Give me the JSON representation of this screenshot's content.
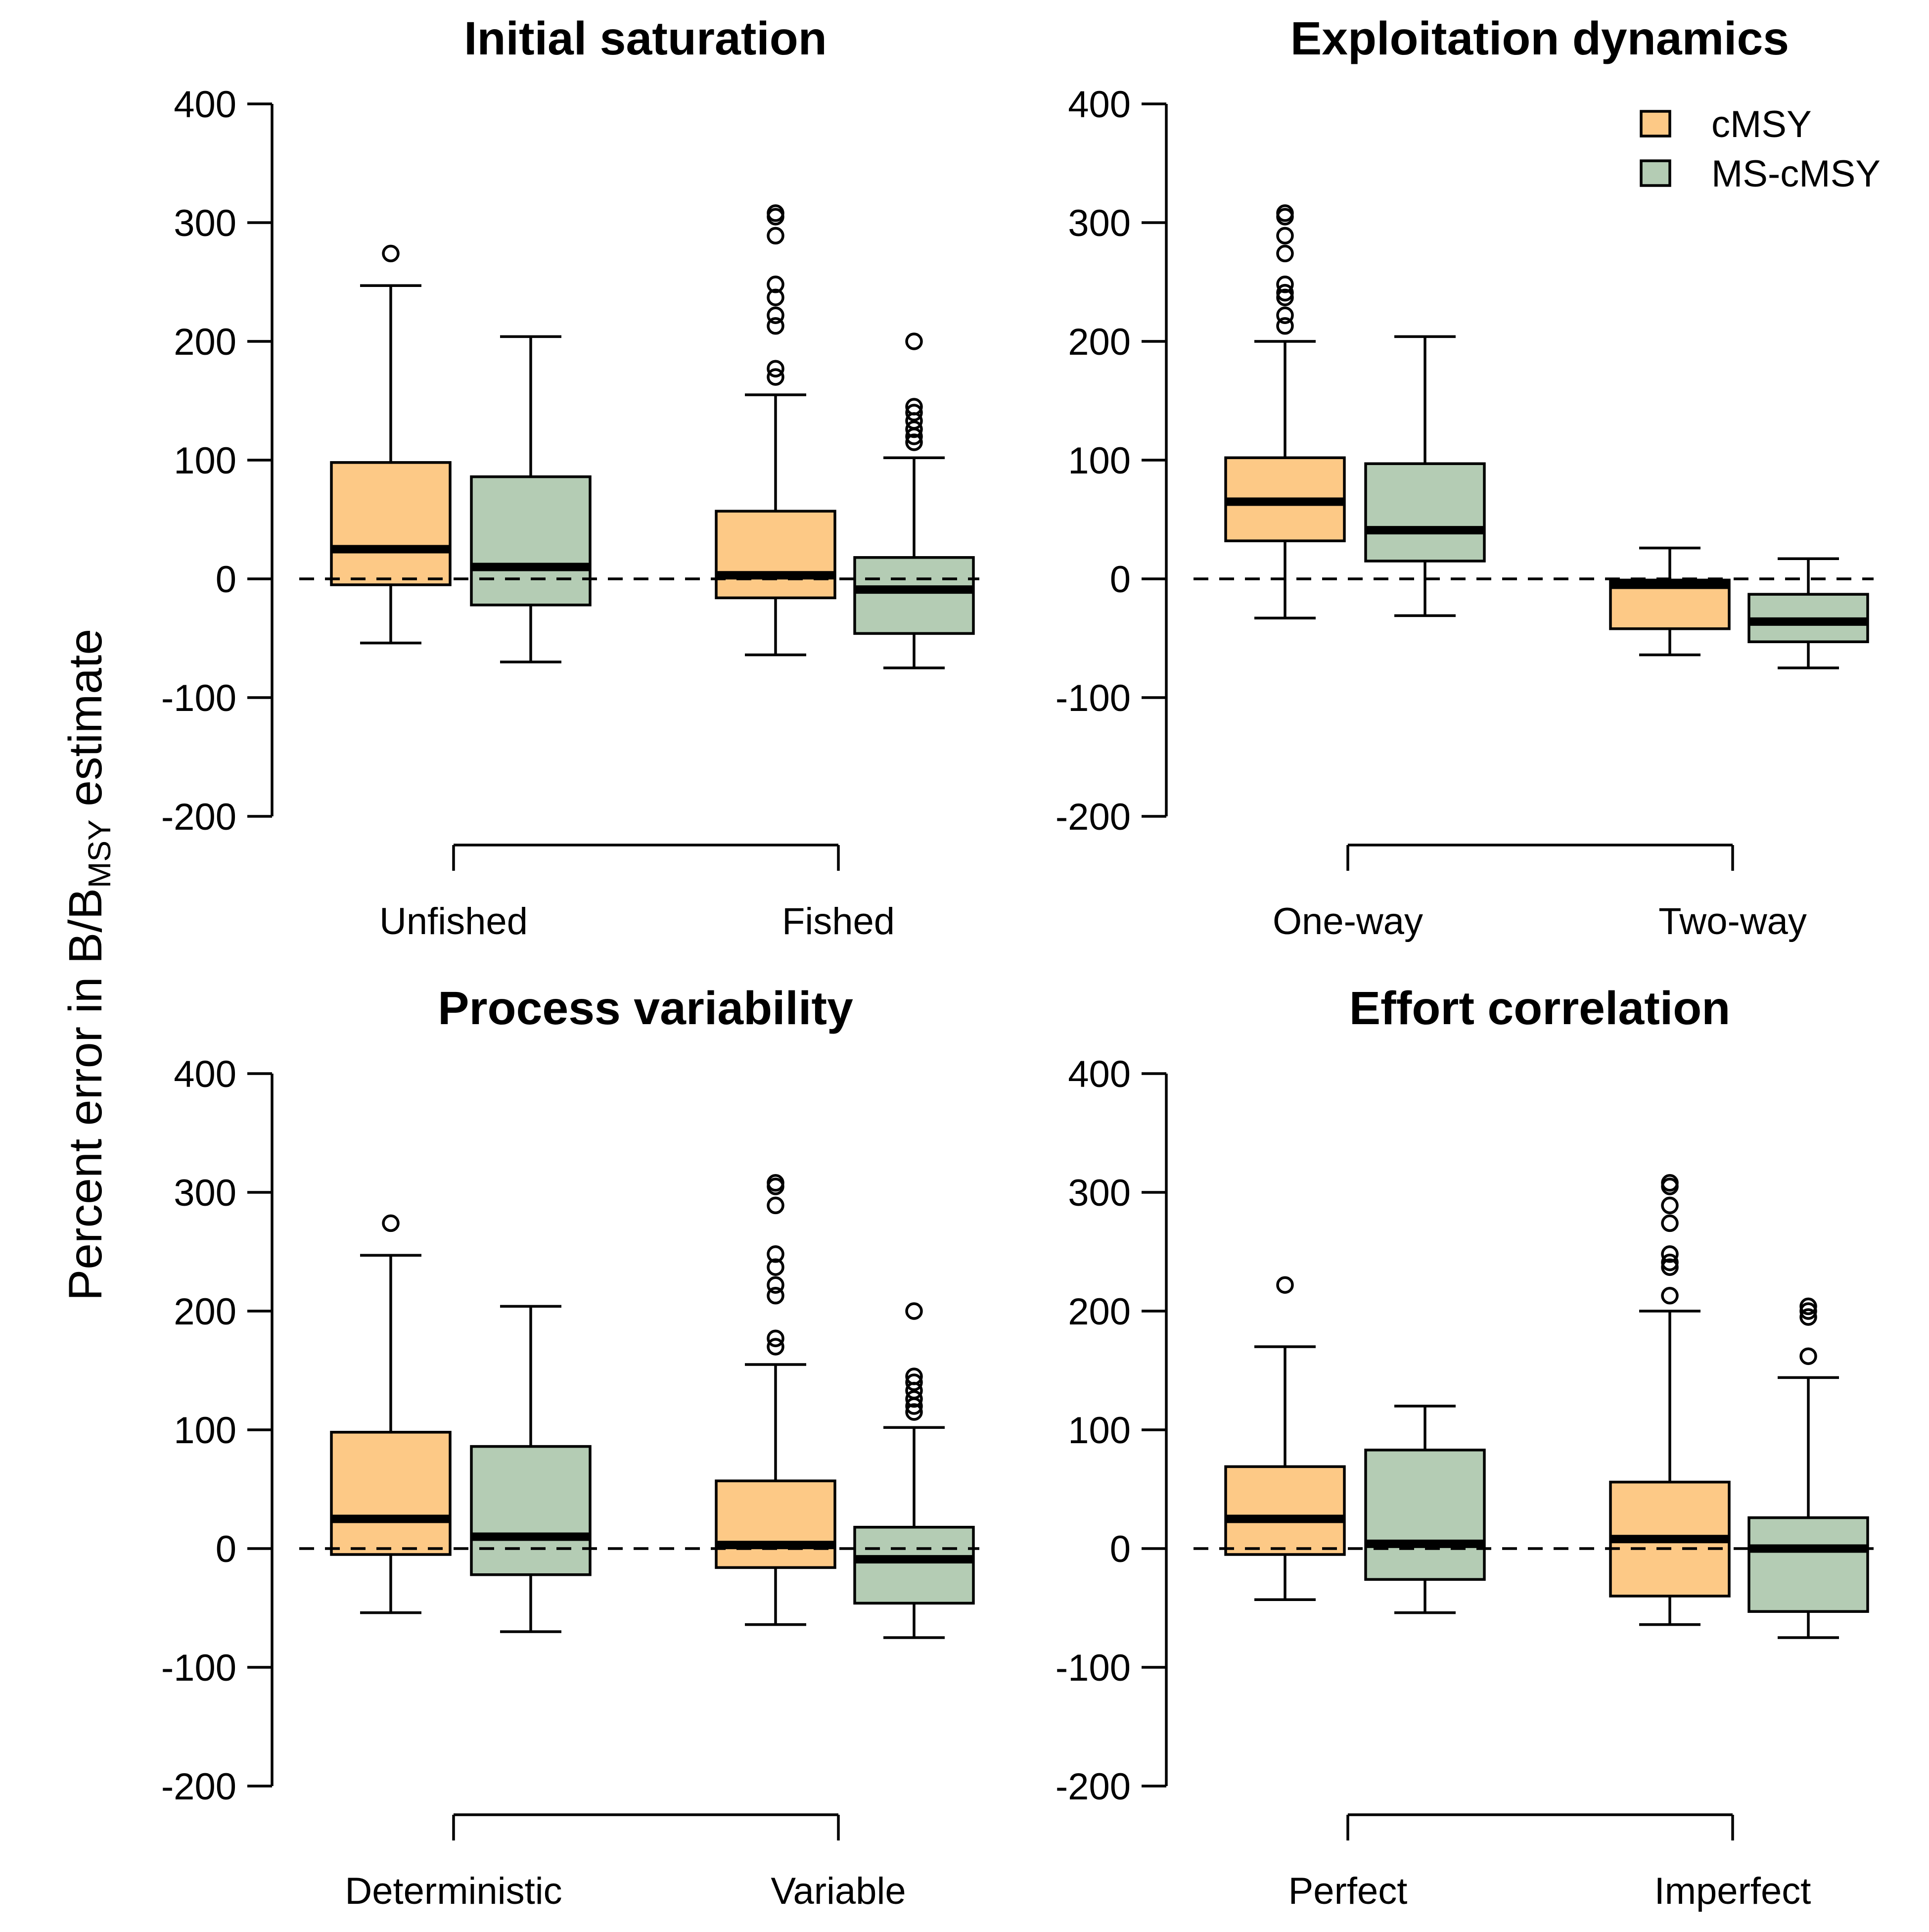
{
  "y_label": {
    "prefix": "Percent error in B/B",
    "subscript": "MSY",
    "suffix": " estimate"
  },
  "legend": [
    {
      "label": "cMSY",
      "color": "#FDC986"
    },
    {
      "label": "MS-cMSY",
      "color": "#B4CCB4"
    }
  ],
  "chart_data": [
    {
      "type": "box",
      "title": "Initial saturation",
      "categories": [
        "Unfished",
        "Fished"
      ],
      "yticks": [
        -200,
        -100,
        0,
        100,
        200,
        300,
        400
      ],
      "ylim": [
        -200,
        400
      ],
      "reference_line": 0,
      "series": [
        {
          "name": "cMSY",
          "color": "#FDC986",
          "boxes": [
            {
              "min": -54,
              "q1": -5,
              "median": 25,
              "q3": 98,
              "max": 247,
              "outliers": [
                274
              ]
            },
            {
              "min": -64,
              "q1": -16,
              "median": 3,
              "q3": 57,
              "max": 155,
              "outliers": [
                170,
                177,
                213,
                222,
                237,
                248,
                289,
                305,
                308
              ]
            }
          ]
        },
        {
          "name": "MS-cMSY",
          "color": "#B4CCB4",
          "boxes": [
            {
              "min": -70,
              "q1": -22,
              "median": 10,
              "q3": 86,
              "max": 204,
              "outliers": []
            },
            {
              "min": -75,
              "q1": -46,
              "median": -9,
              "q3": 18,
              "max": 102,
              "outliers": [
                115,
                120,
                126,
                133,
                140,
                145,
                200
              ]
            }
          ]
        }
      ]
    },
    {
      "type": "box",
      "title": "Exploitation dynamics",
      "categories": [
        "One-way",
        "Two-way"
      ],
      "yticks": [
        -200,
        -100,
        0,
        100,
        200,
        300,
        400
      ],
      "ylim": [
        -200,
        400
      ],
      "reference_line": 0,
      "series": [
        {
          "name": "cMSY",
          "color": "#FDC986",
          "boxes": [
            {
              "min": -33,
              "q1": 32,
              "median": 65,
              "q3": 102,
              "max": 200,
              "outliers": [
                213,
                222,
                237,
                241,
                248,
                274,
                289,
                305,
                308
              ]
            },
            {
              "min": -64,
              "q1": -42,
              "median": -5,
              "q3": -1,
              "max": 26,
              "outliers": []
            }
          ]
        },
        {
          "name": "MS-cMSY",
          "color": "#B4CCB4",
          "boxes": [
            {
              "min": -31,
              "q1": 15,
              "median": 41,
              "q3": 97,
              "max": 204,
              "outliers": []
            },
            {
              "min": -75,
              "q1": -53,
              "median": -36,
              "q3": -13,
              "max": 17,
              "outliers": []
            }
          ]
        }
      ]
    },
    {
      "type": "box",
      "title": "Process variability",
      "categories": [
        "Deterministic",
        "Variable"
      ],
      "yticks": [
        -200,
        -100,
        0,
        100,
        200,
        300,
        400
      ],
      "ylim": [
        -200,
        400
      ],
      "reference_line": 0,
      "series": [
        {
          "name": "cMSY",
          "color": "#FDC986",
          "boxes": [
            {
              "min": -54,
              "q1": -5,
              "median": 25,
              "q3": 98,
              "max": 247,
              "outliers": [
                274
              ]
            },
            {
              "min": -64,
              "q1": -16,
              "median": 3,
              "q3": 57,
              "max": 155,
              "outliers": [
                170,
                177,
                213,
                222,
                237,
                248,
                289,
                305,
                308
              ]
            }
          ]
        },
        {
          "name": "MS-cMSY",
          "color": "#B4CCB4",
          "boxes": [
            {
              "min": -70,
              "q1": -22,
              "median": 10,
              "q3": 86,
              "max": 204,
              "outliers": []
            },
            {
              "min": -75,
              "q1": -46,
              "median": -9,
              "q3": 18,
              "max": 102,
              "outliers": [
                115,
                120,
                126,
                133,
                140,
                145,
                200
              ]
            }
          ]
        }
      ]
    },
    {
      "type": "box",
      "title": "Effort correlation",
      "categories": [
        "Perfect",
        "Imperfect"
      ],
      "yticks": [
        -200,
        -100,
        0,
        100,
        200,
        300,
        400
      ],
      "ylim": [
        -200,
        400
      ],
      "reference_line": 0,
      "series": [
        {
          "name": "cMSY",
          "color": "#FDC986",
          "boxes": [
            {
              "min": -43,
              "q1": -5,
              "median": 25,
              "q3": 69,
              "max": 170,
              "outliers": [
                222
              ]
            },
            {
              "min": -64,
              "q1": -40,
              "median": 8,
              "q3": 56,
              "max": 200,
              "outliers": [
                213,
                237,
                241,
                248,
                274,
                289,
                305,
                308
              ]
            }
          ]
        },
        {
          "name": "MS-cMSY",
          "color": "#B4CCB4",
          "boxes": [
            {
              "min": -54,
              "q1": -26,
              "median": 4,
              "q3": 83,
              "max": 120,
              "outliers": []
            },
            {
              "min": -75,
              "q1": -53,
              "median": 0,
              "q3": 26,
              "max": 144,
              "outliers": [
                162,
                195,
                200,
                204
              ]
            }
          ]
        }
      ]
    }
  ]
}
